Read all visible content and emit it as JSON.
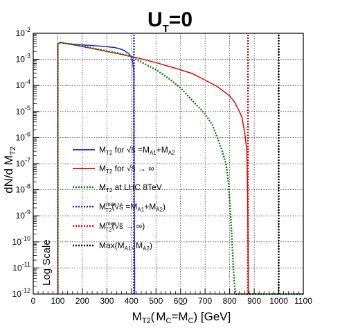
{
  "chart_data": {
    "type": "line",
    "title": "U_T=0",
    "title_main": "U",
    "title_sub": "T",
    "title_rest": "=0",
    "xlabel": "M_T2( M~_C=M_C) [GeV]",
    "ylabel": "dN/d M_T2",
    "x_tick_labels": [
      "0",
      "100",
      "200",
      "300",
      "400",
      "500",
      "600",
      "700",
      "800",
      "900",
      "1000",
      "1100"
    ],
    "y_tick_labels": [
      "10^-2",
      "10^-3",
      "10^-4",
      "10^-5",
      "10^-6",
      "10^-7",
      "10^-8",
      "10^-9",
      "10^-10",
      "10^-11",
      "10^-12"
    ],
    "xlim": [
      0,
      1100
    ],
    "ylim": [
      1e-12,
      0.01
    ],
    "yscale": "log",
    "grid": true,
    "annotation": "Log Scale",
    "legend_position": "center-left",
    "series": [
      {
        "name": "M_T2 for √ŝ = M_A1 + M_A2",
        "color": "#1a1aff",
        "style": "solid",
        "x": [
          100,
          100,
          110,
          120,
          150,
          200,
          250,
          300,
          330,
          350,
          370,
          390,
          400,
          405,
          410,
          410,
          411,
          413,
          413
        ],
        "y": [
          1e-12,
          0.004,
          0.0045,
          0.0042,
          0.0039,
          0.0036,
          0.00335,
          0.00305,
          0.00285,
          0.0026,
          0.0022,
          0.0016,
          0.0012,
          0.0008,
          0.0003,
          1e-05,
          1e-08,
          1e-11,
          1e-12
        ]
      },
      {
        "name": "M_T2 for √ŝ → ∞",
        "color": "#e60000",
        "style": "solid",
        "x": [
          100,
          100,
          110,
          150,
          200,
          300,
          400,
          500,
          600,
          650,
          700,
          750,
          800,
          820,
          840,
          850,
          860,
          865,
          870,
          873,
          875,
          876
        ],
        "y": [
          1e-12,
          0.004,
          0.0044,
          0.0038,
          0.0031,
          0.002,
          0.0013,
          0.00075,
          0.0004,
          0.00028,
          0.00016,
          9e-05,
          4e-05,
          2.3e-05,
          1e-05,
          6e-06,
          1.8e-06,
          8e-07,
          3e-07,
          1e-08,
          1e-10,
          1e-12
        ]
      },
      {
        "name": "M_T2 at LHC 8TeV",
        "color": "#0a7a0a",
        "style": "dotted",
        "x": [
          100,
          100,
          110,
          150,
          200,
          250,
          300,
          350,
          400,
          450,
          500,
          550,
          600,
          650,
          700,
          730,
          750,
          770,
          785,
          795,
          800,
          805,
          810,
          815,
          820,
          825,
          1100
        ],
        "y": [
          1e-12,
          0.004,
          0.0044,
          0.0039,
          0.0033,
          0.0026,
          0.0021,
          0.0017,
          0.00125,
          0.0007,
          0.0004,
          0.00019,
          8e-05,
          2.5e-05,
          8e-06,
          3e-06,
          1e-06,
          3e-07,
          1e-07,
          2e-08,
          4e-09,
          7e-10,
          1e-10,
          1e-11,
          2e-12,
          1e-12,
          1e-12
        ]
      },
      {
        "name": "M_T2^max(√ŝ = M_A1 + M_A2)",
        "color": "#1a1aff",
        "style": "dotted",
        "x": [
          410,
          410
        ],
        "y": [
          1e-12,
          0.01
        ]
      },
      {
        "name": "M_T2^max(√ŝ → ∞)",
        "color": "#e60000",
        "style": "dotted",
        "x": [
          875,
          875
        ],
        "y": [
          1e-12,
          0.01
        ]
      },
      {
        "name": "Max(M_A1, M_A2)",
        "color": "#000000",
        "style": "dotted",
        "x": [
          1000,
          1000
        ],
        "y": [
          1e-12,
          0.01
        ]
      }
    ]
  }
}
